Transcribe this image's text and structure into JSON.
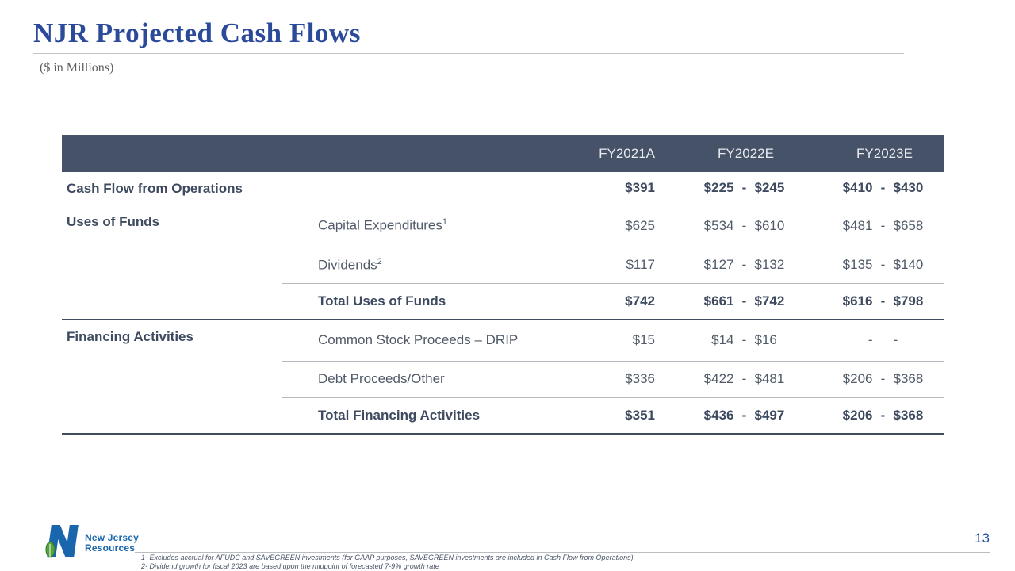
{
  "slide": {
    "title": "NJR Projected Cash Flows",
    "subtitle": "($ in Millions)",
    "page_number": "13"
  },
  "logo": {
    "name": "New Jersey Resources",
    "line1": "New Jersey",
    "line2": "Resources"
  },
  "table": {
    "columns": [
      "FY2021A",
      "FY2022E",
      "FY2023E"
    ],
    "sections": [
      {
        "label": "Cash Flow from Operations",
        "rows": [
          {
            "item": "",
            "sup": "",
            "bold": true,
            "fy2021": "$391",
            "fy2022": {
              "low": "$225",
              "sep": "-",
              "high": "$245"
            },
            "fy2023": {
              "low": "$410",
              "sep": "-",
              "high": "$430"
            }
          }
        ]
      },
      {
        "label": "Uses of Funds",
        "rows": [
          {
            "item": "Capital Expenditures",
            "sup": "1",
            "bold": false,
            "fy2021": "$625",
            "fy2022": {
              "low": "$534",
              "sep": "-",
              "high": "$610"
            },
            "fy2023": {
              "low": "$481",
              "sep": "-",
              "high": "$658"
            }
          },
          {
            "item": "Dividends",
            "sup": "2",
            "bold": false,
            "fy2021": "$117",
            "fy2022": {
              "low": "$127",
              "sep": "-",
              "high": "$132"
            },
            "fy2023": {
              "low": "$135",
              "sep": "-",
              "high": "$140"
            }
          },
          {
            "item": "Total Uses of Funds",
            "sup": "",
            "bold": true,
            "fy2021": "$742",
            "fy2022": {
              "low": "$661",
              "sep": "-",
              "high": "$742"
            },
            "fy2023": {
              "low": "$616",
              "sep": "-",
              "high": "$798"
            }
          }
        ]
      },
      {
        "label": "Financing Activities",
        "rows": [
          {
            "item": "Common Stock Proceeds – DRIP",
            "sup": "",
            "bold": false,
            "fy2021": "$15",
            "fy2022": {
              "low": "$14",
              "sep": "-",
              "high": "$16"
            },
            "fy2023": {
              "low": "-",
              "sep": "",
              "high": "-"
            }
          },
          {
            "item": "Debt Proceeds/Other",
            "sup": "",
            "bold": false,
            "fy2021": "$336",
            "fy2022": {
              "low": "$422",
              "sep": "-",
              "high": "$481"
            },
            "fy2023": {
              "low": "$206",
              "sep": "-",
              "high": "$368"
            }
          },
          {
            "item": "Total Financing Activities",
            "sup": "",
            "bold": true,
            "fy2021": "$351",
            "fy2022": {
              "low": "$436",
              "sep": "-",
              "high": "$497"
            },
            "fy2023": {
              "low": "$206",
              "sep": "-",
              "high": "$368"
            }
          }
        ]
      }
    ]
  },
  "footnotes": [
    "1-  Excludes accrual for AFUDC and SAVEGREEN investments  (for GAAP purposes, SAVEGREEN investments are included in Cash Flow from Operations)",
    "2-  Dividend growth for fiscal 2023 are based upon the midpoint of forecasted 7-9% growth rate"
  ],
  "colors": {
    "title_blue": "#2b4a9a",
    "header_bar": "#465268",
    "header_text": "#e7e9ed",
    "table_text": "#505a68",
    "table_text_bold": "#3e4a5f",
    "logo_blue": "#1a66ad",
    "logo_green": "#58a33e",
    "page_number_blue": "#1f4e9c"
  }
}
